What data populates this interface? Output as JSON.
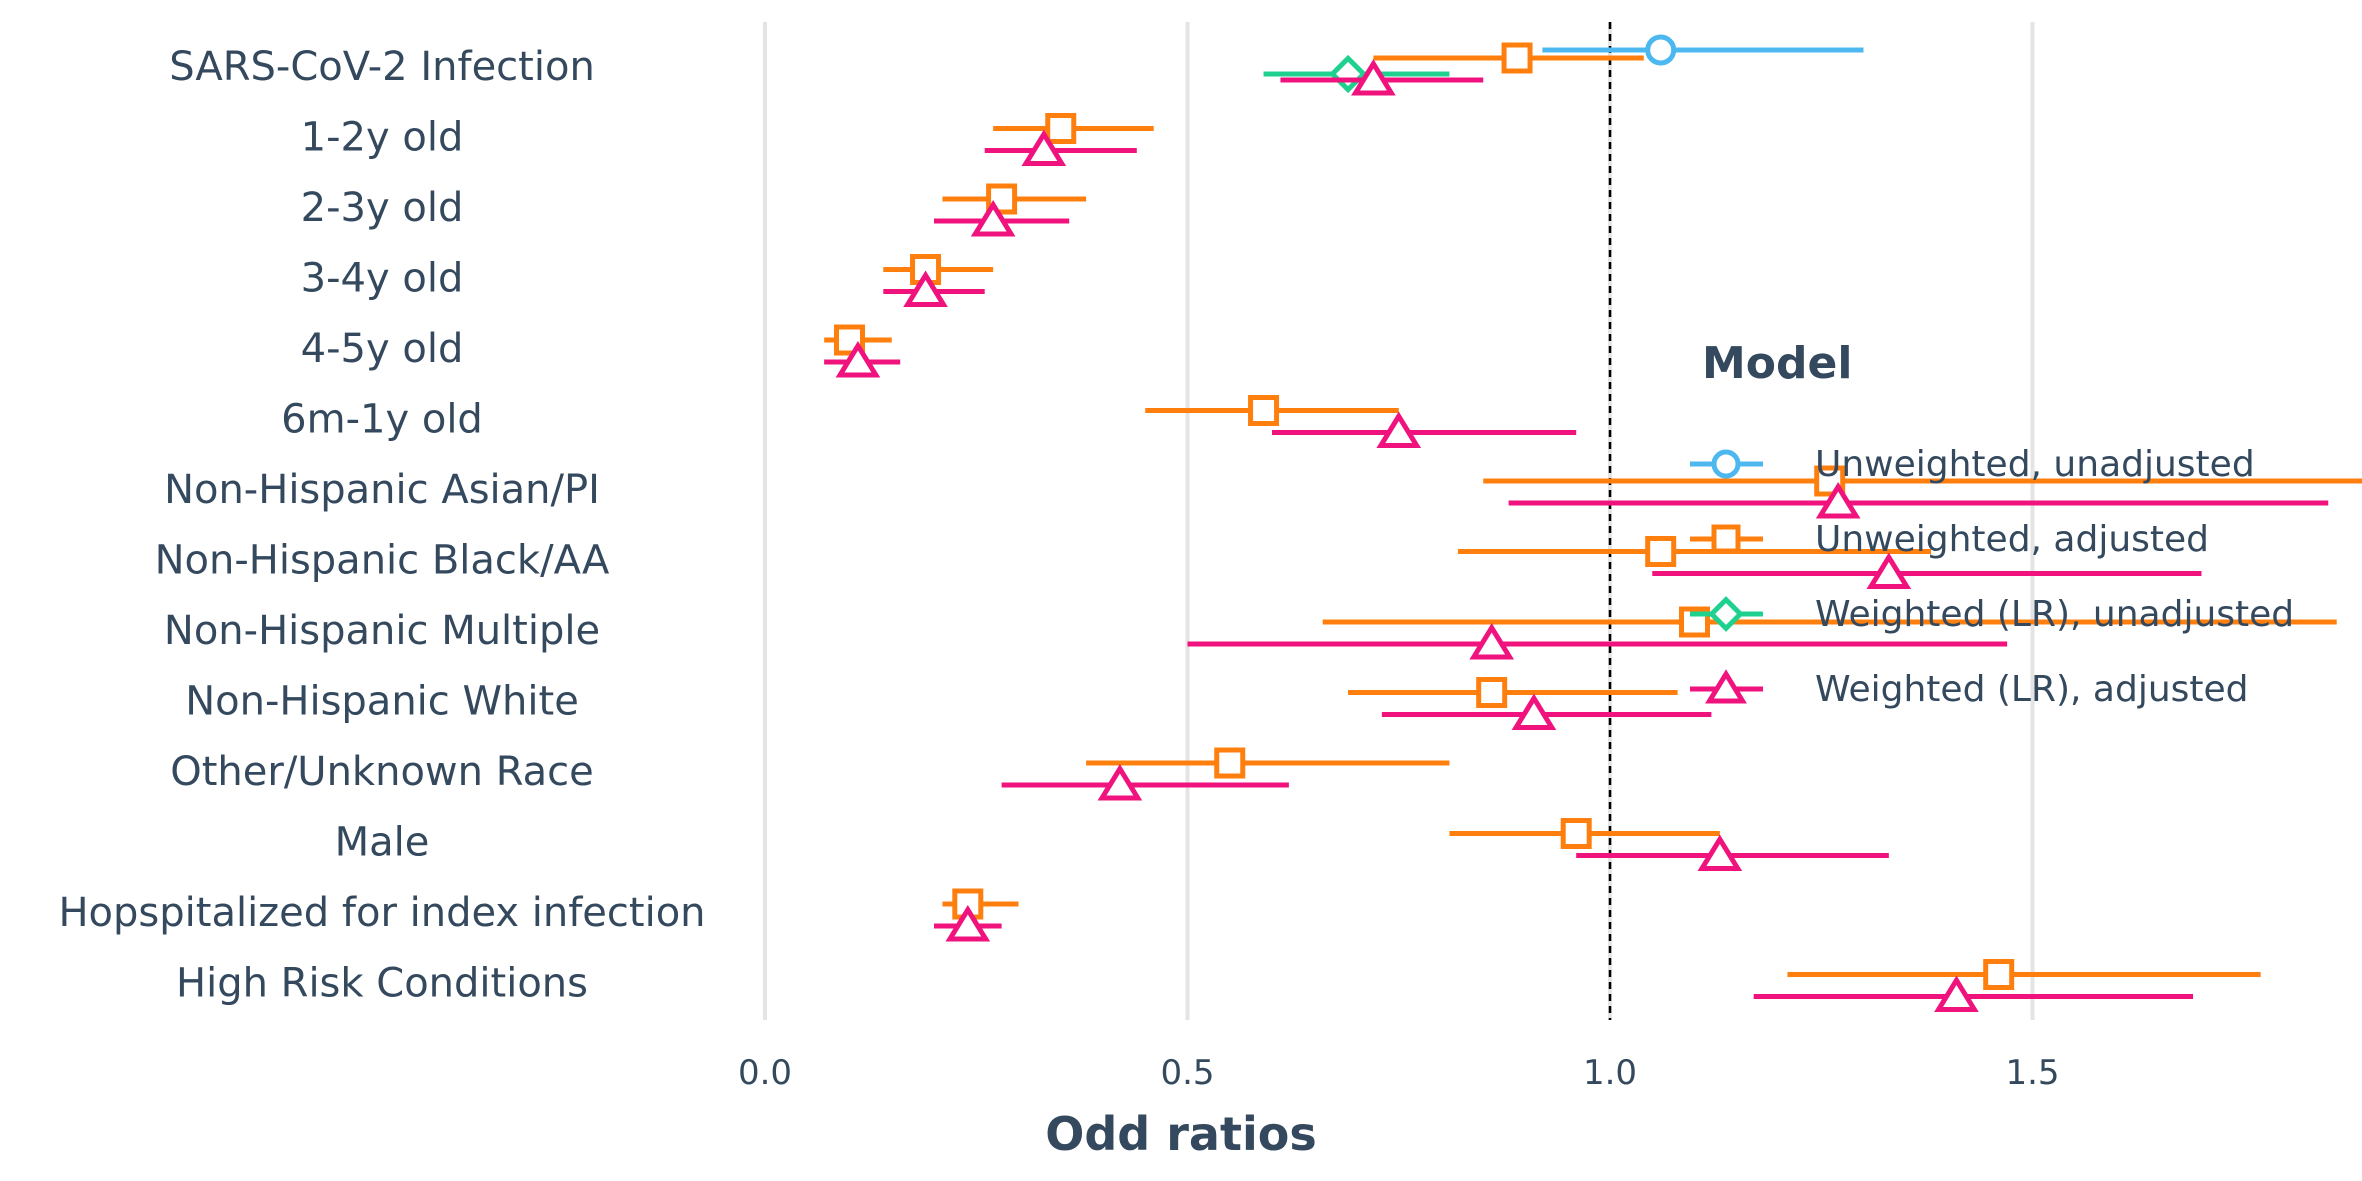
{
  "chart_data": {
    "type": "forest",
    "xlabel": "Odd ratios",
    "xlim": [
      0.0,
      2.0
    ],
    "xticks": [
      "0.0",
      "0.5",
      "1.0",
      "1.5",
      "2.0"
    ],
    "reference_line": 1.0,
    "grid": "vertical",
    "legend": {
      "title": "Model",
      "placement": "right"
    },
    "categories": [
      "SARS-CoV-2 Infection",
      "1-2y old",
      "2-3y old",
      "3-4y old",
      "4-5y old",
      "6m-1y old",
      "Non-Hispanic Asian/PI",
      "Non-Hispanic Black/AA",
      "Non-Hispanic Multiple",
      "Non-Hispanic White",
      "Other/Unknown Race",
      "Male",
      "Hopspitalized for index infection",
      "High Risk Conditions"
    ],
    "series": [
      {
        "name": "Unweighted, unadjusted",
        "color": "#4db8f0",
        "marker": "circle",
        "points": [
          {
            "category": "SARS-CoV-2 Infection",
            "estimate": 1.06,
            "low": 0.92,
            "high": 1.3
          }
        ]
      },
      {
        "name": "Unweighted, adjusted",
        "color": "#ff7f0e",
        "marker": "square",
        "points": [
          {
            "category": "SARS-CoV-2 Infection",
            "estimate": 0.89,
            "low": 0.72,
            "high": 1.04
          },
          {
            "category": "1-2y old",
            "estimate": 0.35,
            "low": 0.27,
            "high": 0.46
          },
          {
            "category": "2-3y old",
            "estimate": 0.28,
            "low": 0.21,
            "high": 0.38
          },
          {
            "category": "3-4y old",
            "estimate": 0.19,
            "low": 0.14,
            "high": 0.27
          },
          {
            "category": "4-5y old",
            "estimate": 0.1,
            "low": 0.07,
            "high": 0.15
          },
          {
            "category": "6m-1y old",
            "estimate": 0.59,
            "low": 0.45,
            "high": 0.75
          },
          {
            "category": "Non-Hispanic Asian/PI",
            "estimate": 1.26,
            "low": 0.85,
            "high": 1.91
          },
          {
            "category": "Non-Hispanic Black/AA",
            "estimate": 1.06,
            "low": 0.82,
            "high": 1.38
          },
          {
            "category": "Non-Hispanic Multiple",
            "estimate": 1.1,
            "low": 0.66,
            "high": 1.86
          },
          {
            "category": "Non-Hispanic White",
            "estimate": 0.86,
            "low": 0.69,
            "high": 1.08
          },
          {
            "category": "Other/Unknown Race",
            "estimate": 0.55,
            "low": 0.38,
            "high": 0.81
          },
          {
            "category": "Male",
            "estimate": 0.96,
            "low": 0.81,
            "high": 1.13
          },
          {
            "category": "Hopspitalized for index infection",
            "estimate": 0.24,
            "low": 0.21,
            "high": 0.3
          },
          {
            "category": "High Risk Conditions",
            "estimate": 1.46,
            "low": 1.21,
            "high": 1.77
          }
        ]
      },
      {
        "name": "Weighted (LR), unadjusted",
        "color": "#1fd18f",
        "marker": "diamond",
        "points": [
          {
            "category": "SARS-CoV-2 Infection",
            "estimate": 0.69,
            "low": 0.59,
            "high": 0.81
          }
        ]
      },
      {
        "name": "Weighted (LR), adjusted",
        "color": "#f0137e",
        "marker": "triangle",
        "points": [
          {
            "category": "SARS-CoV-2 Infection",
            "estimate": 0.72,
            "low": 0.61,
            "high": 0.85
          },
          {
            "category": "1-2y old",
            "estimate": 0.33,
            "low": 0.26,
            "high": 0.44
          },
          {
            "category": "2-3y old",
            "estimate": 0.27,
            "low": 0.2,
            "high": 0.36
          },
          {
            "category": "3-4y old",
            "estimate": 0.19,
            "low": 0.14,
            "high": 0.26
          },
          {
            "category": "4-5y old",
            "estimate": 0.11,
            "low": 0.07,
            "high": 0.16
          },
          {
            "category": "6m-1y old",
            "estimate": 0.75,
            "low": 0.6,
            "high": 0.96
          },
          {
            "category": "Non-Hispanic Asian/PI",
            "estimate": 1.27,
            "low": 0.88,
            "high": 1.85
          },
          {
            "category": "Non-Hispanic Black/AA",
            "estimate": 1.33,
            "low": 1.05,
            "high": 1.7
          },
          {
            "category": "Non-Hispanic Multiple",
            "estimate": 0.86,
            "low": 0.5,
            "high": 1.47
          },
          {
            "category": "Non-Hispanic White",
            "estimate": 0.91,
            "low": 0.73,
            "high": 1.12
          },
          {
            "category": "Other/Unknown Race",
            "estimate": 0.42,
            "low": 0.28,
            "high": 0.62
          },
          {
            "category": "Male",
            "estimate": 1.13,
            "low": 0.96,
            "high": 1.33
          },
          {
            "category": "Hopspitalized for index infection",
            "estimate": 0.24,
            "low": 0.2,
            "high": 0.28
          },
          {
            "category": "High Risk Conditions",
            "estimate": 1.41,
            "low": 1.17,
            "high": 1.69
          }
        ]
      }
    ]
  }
}
